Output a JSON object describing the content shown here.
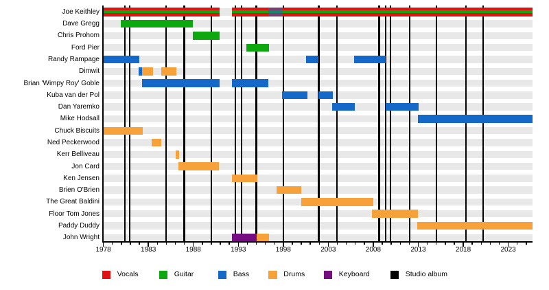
{
  "colors": {
    "vocals": "#e01212",
    "guitar": "#0da80d",
    "bass": "#1368c8",
    "drums": "#f7a13a",
    "keyboard": "#750e80",
    "album": "#000000",
    "row_band": "#e8e8e8",
    "axis": "#000000",
    "background": "#ffffff"
  },
  "chart_data": {
    "type": "timeline",
    "title": "",
    "xlabel": "",
    "ylabel": "",
    "axis": {
      "start_year": 1978,
      "end_year": 2025.72,
      "tick_first": 1978,
      "tick_last": 2025,
      "major_tick_every": 5,
      "year_labels": [
        "1978",
        "1983",
        "1988",
        "1993",
        "1998",
        "2003",
        "2008",
        "2013",
        "2018",
        "2023"
      ],
      "grid": "off",
      "legend_position": "bottom"
    },
    "members": [
      {
        "name": "Joe Keithley",
        "segments": [
          {
            "role": "vocals+guitar",
            "start": 1978.0,
            "end": 1990.95
          },
          {
            "role": "vocals+guitar",
            "start": 1992.33,
            "end": 2025.72
          }
        ],
        "overlays": [
          {
            "role": "bass",
            "start": 1996.33,
            "end": 1997.95
          }
        ]
      },
      {
        "name": "Dave Gregg",
        "segments": [
          {
            "role": "guitar",
            "start": 1979.9,
            "end": 1987.95
          }
        ]
      },
      {
        "name": "Chris Prohom",
        "segments": [
          {
            "role": "guitar",
            "start": 1987.95,
            "end": 1990.95
          }
        ]
      },
      {
        "name": "Ford Pier",
        "segments": [
          {
            "role": "guitar",
            "start": 1993.88,
            "end": 1996.41
          }
        ]
      },
      {
        "name": "Randy Rampage",
        "segments": [
          {
            "role": "bass",
            "start": 1978.0,
            "end": 1981.96
          },
          {
            "role": "bass",
            "start": 2000.55,
            "end": 2001.91
          },
          {
            "role": "bass",
            "start": 2005.89,
            "end": 2009.41
          }
        ]
      },
      {
        "name": "Dimwit",
        "segments": [
          {
            "role": "bass",
            "start": 1981.89,
            "end": 1982.32
          },
          {
            "role": "drums",
            "start": 1982.32,
            "end": 1983.51
          },
          {
            "role": "drums",
            "start": 1984.45,
            "end": 1986.15
          }
        ]
      },
      {
        "name": "Brian 'Wimpy Roy' Goble",
        "segments": [
          {
            "role": "bass",
            "start": 1982.28,
            "end": 1990.95
          },
          {
            "role": "bass",
            "start": 1992.33,
            "end": 1996.37
          }
        ]
      },
      {
        "name": "Kuba van der Pol",
        "segments": [
          {
            "role": "bass",
            "start": 1997.88,
            "end": 2000.69
          },
          {
            "role": "bass",
            "start": 2001.89,
            "end": 2003.48
          }
        ]
      },
      {
        "name": "Dan Yaremko",
        "segments": [
          {
            "role": "bass",
            "start": 2003.42,
            "end": 2005.95
          },
          {
            "role": "bass",
            "start": 2009.4,
            "end": 2013.04
          }
        ]
      },
      {
        "name": "Mike Hodsall",
        "segments": [
          {
            "role": "bass",
            "start": 2012.95,
            "end": 2025.72
          }
        ]
      },
      {
        "name": "Chuck Biscuits",
        "segments": [
          {
            "role": "drums",
            "start": 1978.0,
            "end": 1982.37
          }
        ]
      },
      {
        "name": "Ned Peckerwood",
        "segments": [
          {
            "role": "drums",
            "start": 1983.34,
            "end": 1984.45
          }
        ]
      },
      {
        "name": "Kerr Belliveau",
        "segments": [
          {
            "role": "drums",
            "start": 1986.04,
            "end": 1986.41
          }
        ]
      },
      {
        "name": "Jon Card",
        "segments": [
          {
            "role": "drums",
            "start": 1986.31,
            "end": 1990.88
          }
        ]
      },
      {
        "name": "Ken Jensen",
        "segments": [
          {
            "role": "drums",
            "start": 1992.3,
            "end": 1995.08
          }
        ]
      },
      {
        "name": "Brien O'Brien",
        "segments": [
          {
            "role": "drums",
            "start": 1997.23,
            "end": 1999.97
          }
        ]
      },
      {
        "name": "The Great Baldini",
        "segments": [
          {
            "role": "drums",
            "start": 1999.97,
            "end": 2007.98
          }
        ]
      },
      {
        "name": "Floor Tom Jones",
        "segments": [
          {
            "role": "drums",
            "start": 2007.85,
            "end": 2013.0
          }
        ]
      },
      {
        "name": "Paddy Duddy",
        "segments": [
          {
            "role": "drums",
            "start": 2012.89,
            "end": 2025.72
          }
        ]
      },
      {
        "name": "John Wright",
        "segments": [
          {
            "role": "keyboard",
            "start": 1992.33,
            "end": 1995.07
          },
          {
            "role": "drums",
            "start": 1995.07,
            "end": 1996.41
          }
        ]
      }
    ],
    "studio_albums": [
      {
        "year": 1980.39
      },
      {
        "year": 1980.94
      },
      {
        "year": 1984.96
      },
      {
        "year": 1986.98
      },
      {
        "year": 1990.0
      },
      {
        "year": 1992.69
      },
      {
        "year": 1993.37
      },
      {
        "year": 1995.0
      },
      {
        "year": 1998.0
      },
      {
        "year": 2001.93
      },
      {
        "year": 2003.97
      },
      {
        "year": 2008.64
      },
      {
        "year": 2009.38
      },
      {
        "year": 2009.93
      },
      {
        "year": 2012.03
      },
      {
        "year": 2015.0
      },
      {
        "year": 2018.29
      },
      {
        "year": 2020.19
      }
    ],
    "legend": [
      {
        "label": "Vocals",
        "role": "vocals"
      },
      {
        "label": "Guitar",
        "role": "guitar"
      },
      {
        "label": "Bass",
        "role": "bass"
      },
      {
        "label": "Drums",
        "role": "drums"
      },
      {
        "label": "Keyboard",
        "role": "keyboard"
      },
      {
        "label": "Studio album",
        "role": "album"
      }
    ]
  }
}
